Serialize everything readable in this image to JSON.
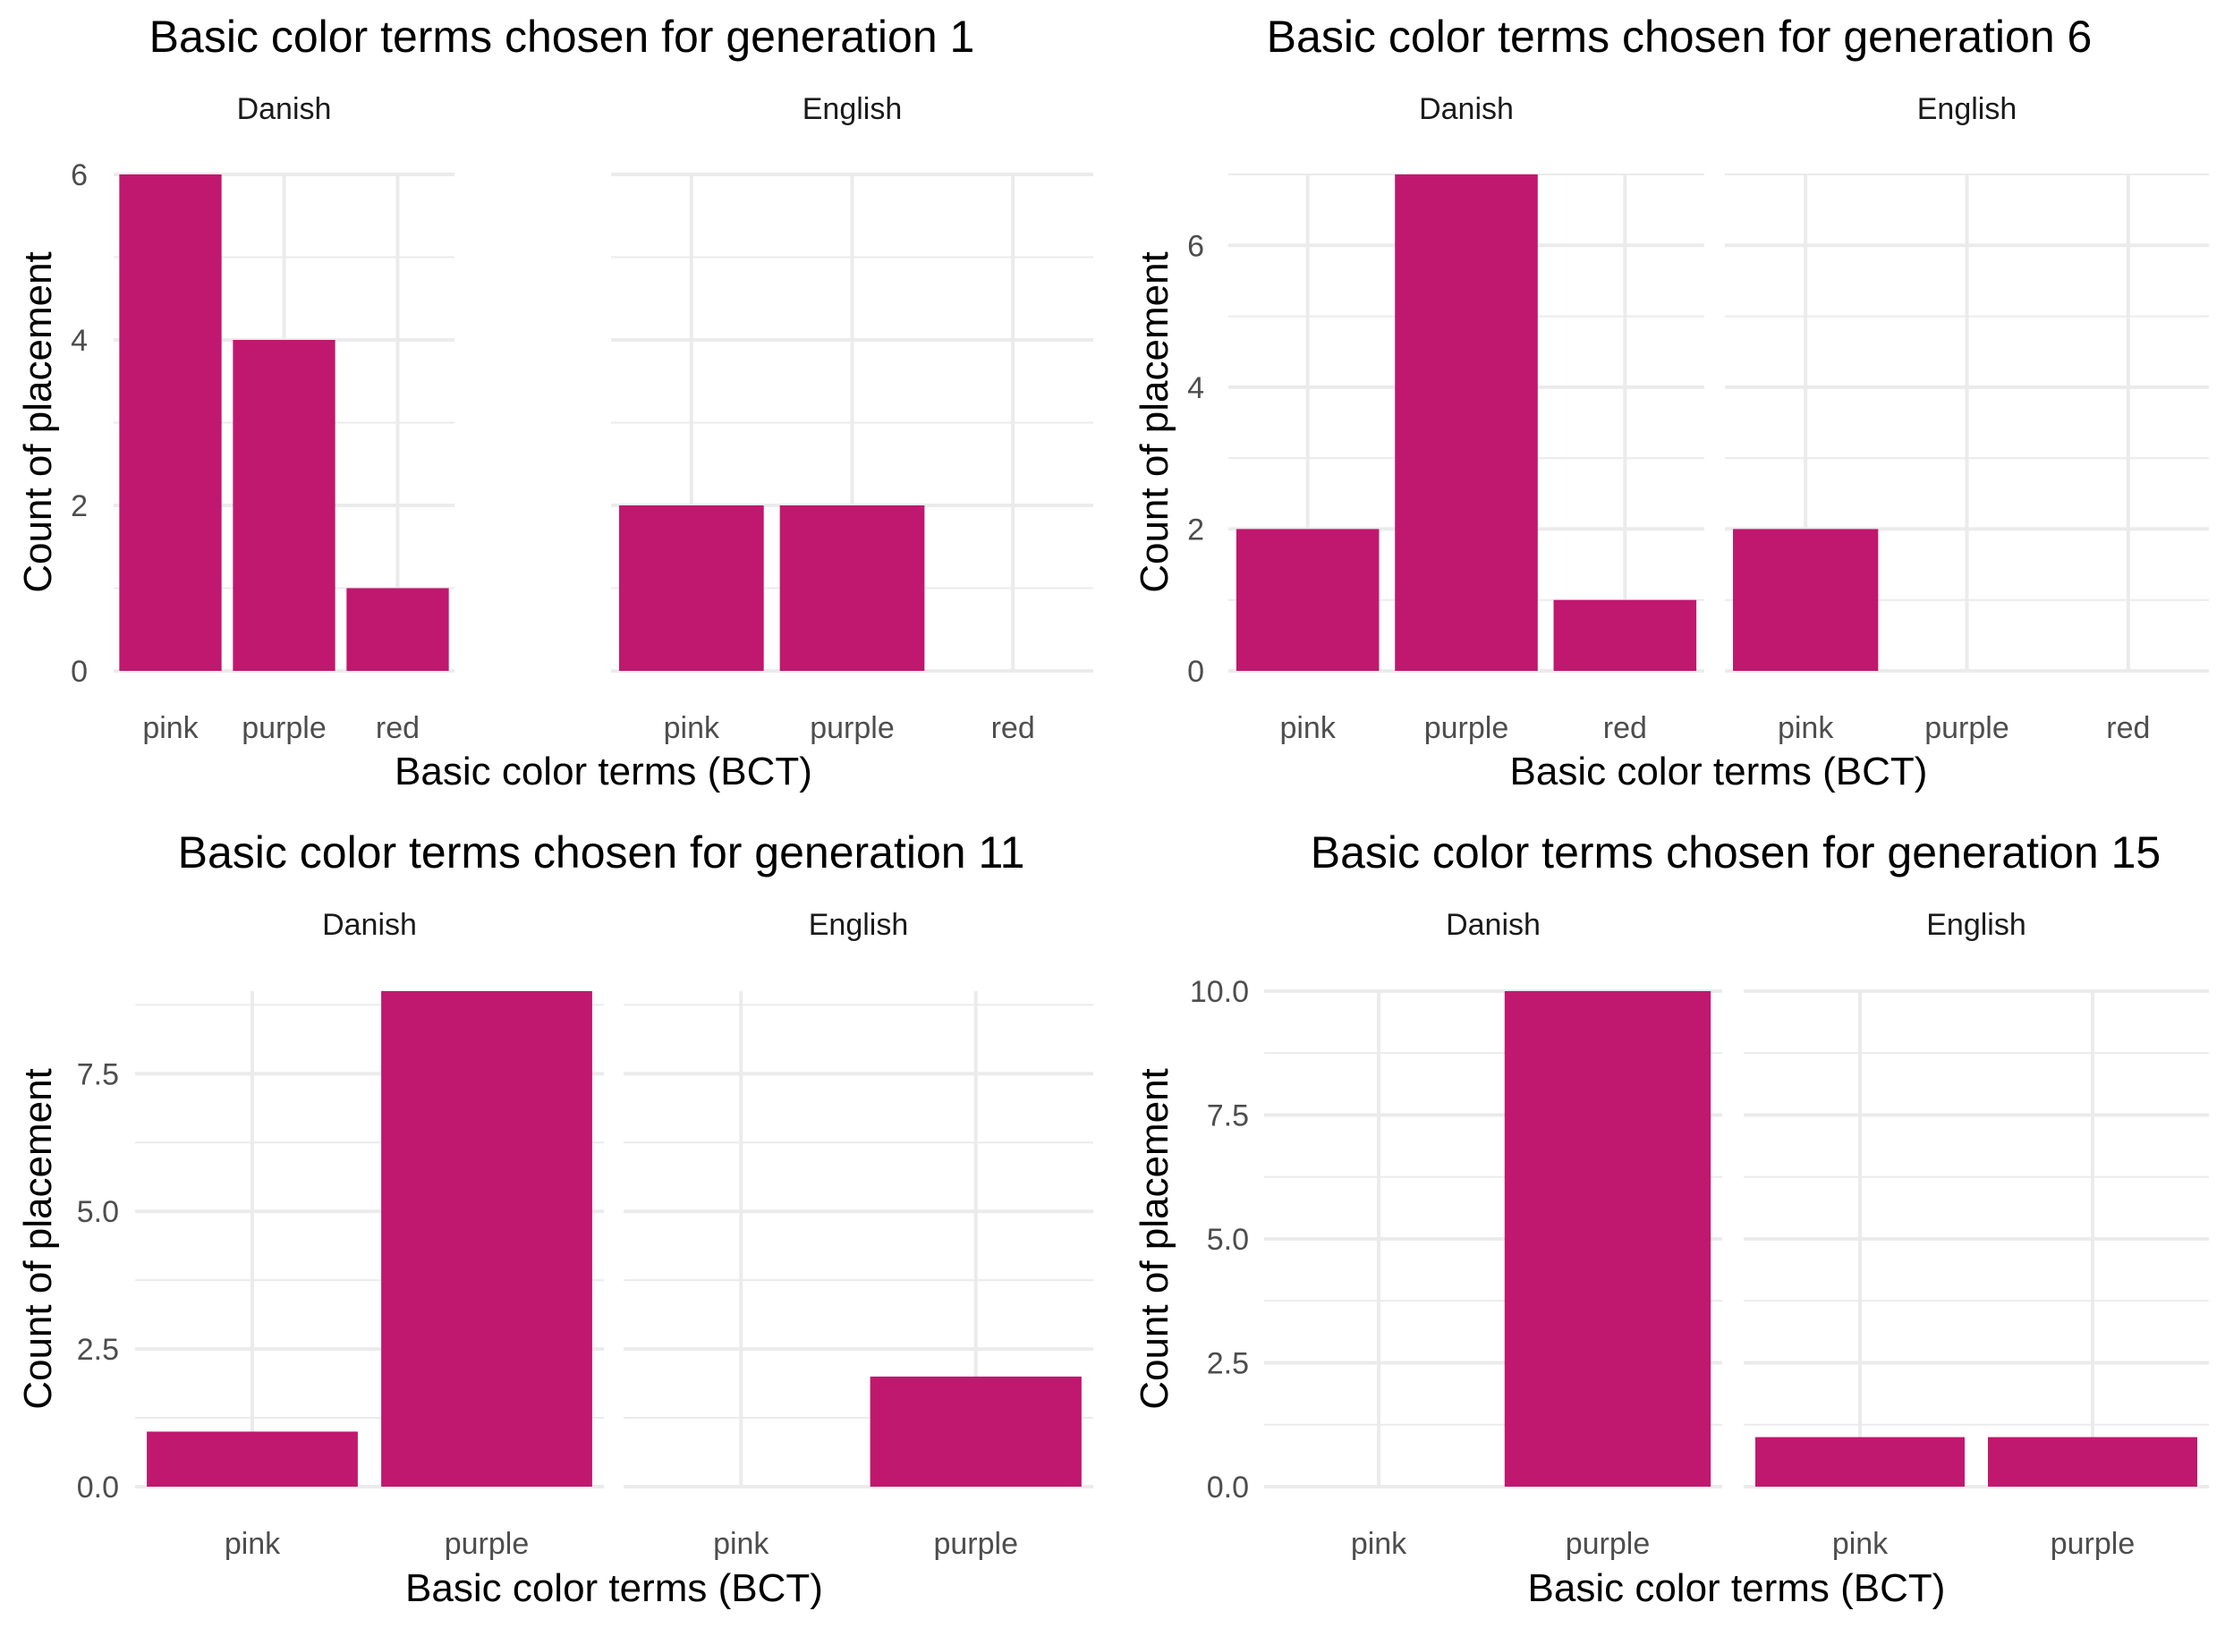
{
  "chart_data": [
    {
      "type": "bar",
      "title": "Basic color terms chosen for generation 1",
      "xlabel": "Basic color terms (BCT)",
      "ylabel": "Count of placement",
      "ylim": [
        0,
        6
      ],
      "yticks": [
        0,
        2,
        4,
        6
      ],
      "ytick_labels": [
        "0",
        "2",
        "4",
        "6"
      ],
      "categories": [
        "pink",
        "purple",
        "red"
      ],
      "grid": true,
      "facets": [
        {
          "name": "Danish",
          "values": [
            6,
            4,
            1
          ]
        },
        {
          "name": "English",
          "values": [
            2,
            2,
            0
          ]
        }
      ]
    },
    {
      "type": "bar",
      "title": "Basic color terms chosen for generation 6",
      "xlabel": "Basic color terms (BCT)",
      "ylabel": "Count of placement",
      "ylim": [
        0,
        7
      ],
      "yticks": [
        0,
        2,
        4,
        6
      ],
      "ytick_labels": [
        "0",
        "2",
        "4",
        "6"
      ],
      "categories": [
        "pink",
        "purple",
        "red"
      ],
      "grid": true,
      "facets": [
        {
          "name": "Danish",
          "values": [
            2,
            7,
            1
          ]
        },
        {
          "name": "English",
          "values": [
            2,
            0,
            0
          ]
        }
      ]
    },
    {
      "type": "bar",
      "title": "Basic color terms chosen for generation 11",
      "xlabel": "Basic color terms (BCT)",
      "ylabel": "Count of placement",
      "ylim": [
        0,
        9
      ],
      "yticks": [
        0,
        2.5,
        5,
        7.5
      ],
      "ytick_labels": [
        "0.0",
        "2.5",
        "5.0",
        "7.5"
      ],
      "categories": [
        "pink",
        "purple"
      ],
      "grid": true,
      "facets": [
        {
          "name": "Danish",
          "values": [
            1,
            9
          ]
        },
        {
          "name": "English",
          "values": [
            0,
            2
          ]
        }
      ]
    },
    {
      "type": "bar",
      "title": "Basic color terms chosen for generation 15",
      "xlabel": "Basic color terms (BCT)",
      "ylabel": "Count of placement",
      "ylim": [
        0,
        10
      ],
      "yticks": [
        0,
        2.5,
        5,
        7.5,
        10
      ],
      "ytick_labels": [
        "0.0",
        "2.5",
        "5.0",
        "7.5",
        "10.0"
      ],
      "categories": [
        "pink",
        "purple"
      ],
      "grid": true,
      "facets": [
        {
          "name": "Danish",
          "values": [
            0,
            10
          ]
        },
        {
          "name": "English",
          "values": [
            1,
            1
          ]
        }
      ]
    }
  ],
  "colors": {
    "bar": "#c0186e",
    "grid": "#ebebeb",
    "tick_text": "#4d4d4d",
    "text": "#000000"
  }
}
